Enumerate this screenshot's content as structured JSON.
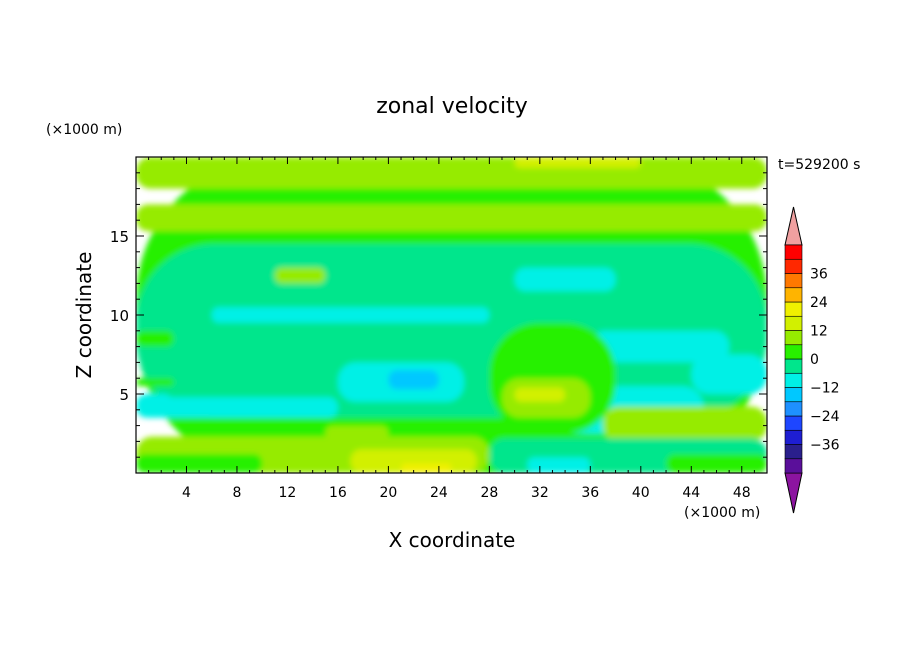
{
  "chart_data": {
    "type": "heatmap",
    "title": "zonal velocity",
    "xlabel": "X coordinate",
    "ylabel": "Z coordinate",
    "x_units": "(×1000 m)",
    "y_units": "(×1000 m)",
    "time_label": "t=529200 s",
    "xlim": [
      0,
      50
    ],
    "ylim": [
      0,
      20
    ],
    "x_ticks": [
      4,
      8,
      12,
      16,
      20,
      24,
      28,
      32,
      36,
      40,
      44,
      48
    ],
    "y_ticks": [
      5,
      10,
      15
    ],
    "colorbar": {
      "levels": [
        -42,
        -36,
        -30,
        -24,
        -18,
        -12,
        -6,
        0,
        6,
        12,
        18,
        24,
        30,
        36,
        42
      ],
      "labels": [
        -36,
        -24,
        -12,
        0,
        12,
        24,
        36
      ],
      "colors": [
        "#5a0f9a",
        "#2a1f8c",
        "#1e1ed2",
        "#1e46ff",
        "#1e90ff",
        "#00c8ff",
        "#00f0e6",
        "#00e68c",
        "#28f000",
        "#96eb00",
        "#d2f000",
        "#f0f000",
        "#ffb400",
        "#ff7800",
        "#ff2800",
        "#ff0000"
      ],
      "under_color": "#8c14a0",
      "over_color": "#f0a0a0"
    },
    "regions": [
      {
        "x0": 0,
        "x1": 50,
        "z0": 0,
        "z1": 20,
        "value": 3
      },
      {
        "x0": 0,
        "x1": 50,
        "z0": 3.5,
        "z1": 14.5,
        "value": -3
      },
      {
        "x0": 0,
        "x1": 50,
        "z0": 18,
        "z1": 20,
        "value": 9
      },
      {
        "x0": 0,
        "x1": 50,
        "z0": 15.3,
        "z1": 17,
        "value": 9
      },
      {
        "x0": 18,
        "x1": 30,
        "z0": 18.8,
        "z1": 20,
        "value": 9
      },
      {
        "x0": 30,
        "x1": 40,
        "z0": 19.3,
        "z1": 20,
        "value": 13
      },
      {
        "x0": 0,
        "x1": 3,
        "z0": 8,
        "z1": 9,
        "value": 3
      },
      {
        "x0": 11,
        "x1": 15,
        "z0": 12,
        "z1": 13,
        "value": 9
      },
      {
        "x0": 6,
        "x1": 28,
        "z0": 9.5,
        "z1": 10.5,
        "value": -9
      },
      {
        "x0": 0,
        "x1": 3,
        "z0": 3.5,
        "z1": 5,
        "value": -9
      },
      {
        "x0": 0,
        "x1": 3,
        "z0": 5.5,
        "z1": 6,
        "value": 3
      },
      {
        "x0": 16,
        "x1": 26,
        "z0": 4.5,
        "z1": 7,
        "value": -9
      },
      {
        "x0": 20,
        "x1": 24,
        "z0": 5.3,
        "z1": 6.5,
        "value": -15
      },
      {
        "x0": 30,
        "x1": 38,
        "z0": 11.5,
        "z1": 13,
        "value": -9
      },
      {
        "x0": 2,
        "x1": 16,
        "z0": 3.5,
        "z1": 4.8,
        "value": -9
      },
      {
        "x0": 36,
        "x1": 47,
        "z0": 7,
        "z1": 9,
        "value": -9
      },
      {
        "x0": 44,
        "x1": 50,
        "z0": 5,
        "z1": 7.5,
        "value": -9
      },
      {
        "x0": 33,
        "x1": 45,
        "z0": 2.5,
        "z1": 5.5,
        "value": -9
      },
      {
        "x0": 28,
        "x1": 38,
        "z0": 2.5,
        "z1": 9.5,
        "value": 3
      },
      {
        "x0": 29,
        "x1": 36,
        "z0": 3.5,
        "z1": 6,
        "value": 9
      },
      {
        "x0": 30,
        "x1": 34,
        "z0": 4.5,
        "z1": 5.4,
        "value": 13
      },
      {
        "x0": 37,
        "x1": 50,
        "z0": 2,
        "z1": 4.2,
        "value": 9
      },
      {
        "x0": 0,
        "x1": 28,
        "z0": 0,
        "z1": 2.3,
        "value": 9
      },
      {
        "x0": 0,
        "x1": 10,
        "z0": 0,
        "z1": 1.2,
        "value": 3
      },
      {
        "x0": 15,
        "x1": 20,
        "z0": 2,
        "z1": 3,
        "value": 9
      },
      {
        "x0": 17,
        "x1": 27,
        "z0": 0,
        "z1": 1.5,
        "value": 13
      },
      {
        "x0": 21,
        "x1": 25,
        "z0": 0,
        "z1": 0.6,
        "value": 18
      },
      {
        "x0": 28,
        "x1": 50,
        "z0": 0,
        "z1": 2.2,
        "value": -3
      },
      {
        "x0": 31,
        "x1": 36,
        "z0": 0,
        "z1": 1,
        "value": -9
      },
      {
        "x0": 42,
        "x1": 50,
        "z0": 0,
        "z1": 1.2,
        "value": 3
      }
    ]
  }
}
